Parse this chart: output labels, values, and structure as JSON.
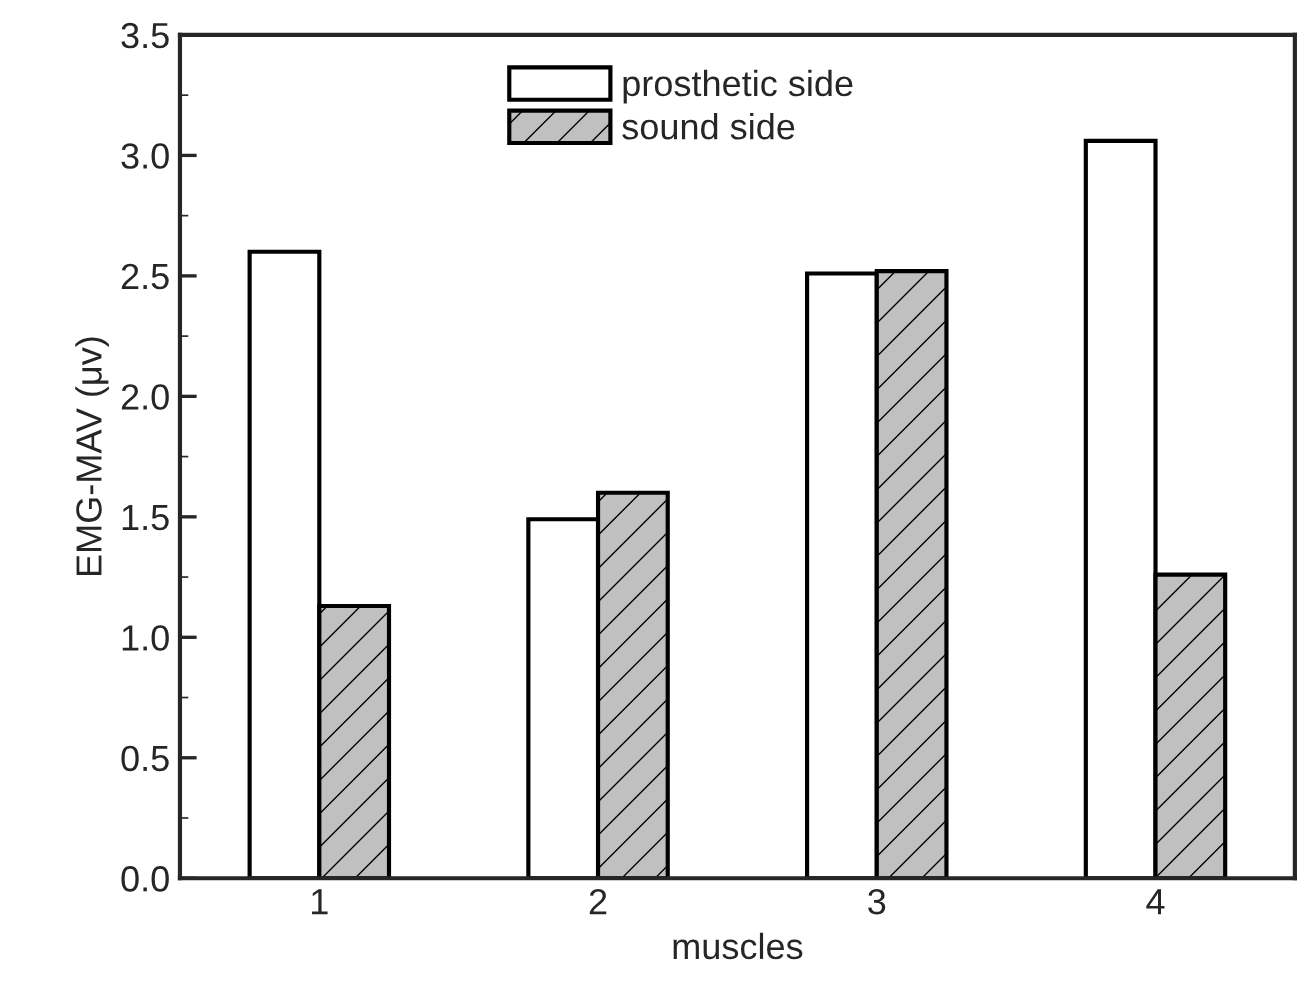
{
  "chart_data": {
    "type": "bar",
    "xlabel": "muscles",
    "ylabel": "EMG-MAV (μv)",
    "categories": [
      "1",
      "2",
      "3",
      "4"
    ],
    "series": [
      {
        "name": "prosthetic side",
        "color": "#ffffff",
        "values": [
          2.6,
          1.49,
          2.51,
          3.06
        ]
      },
      {
        "name": "sound side",
        "color": "#c0c0c0",
        "values": [
          1.13,
          1.6,
          2.52,
          1.26
        ]
      }
    ],
    "ylim": [
      0,
      3.5
    ],
    "yticks": [
      {
        "value": 0,
        "label": "0.0"
      },
      0.5,
      {
        "value": 1,
        "label": "1.0"
      },
      1.5,
      {
        "value": 2,
        "label": "2.0"
      },
      2.5,
      {
        "value": 3,
        "label": "3.0"
      },
      3.5
    ],
    "legend": "top",
    "grid": false
  }
}
